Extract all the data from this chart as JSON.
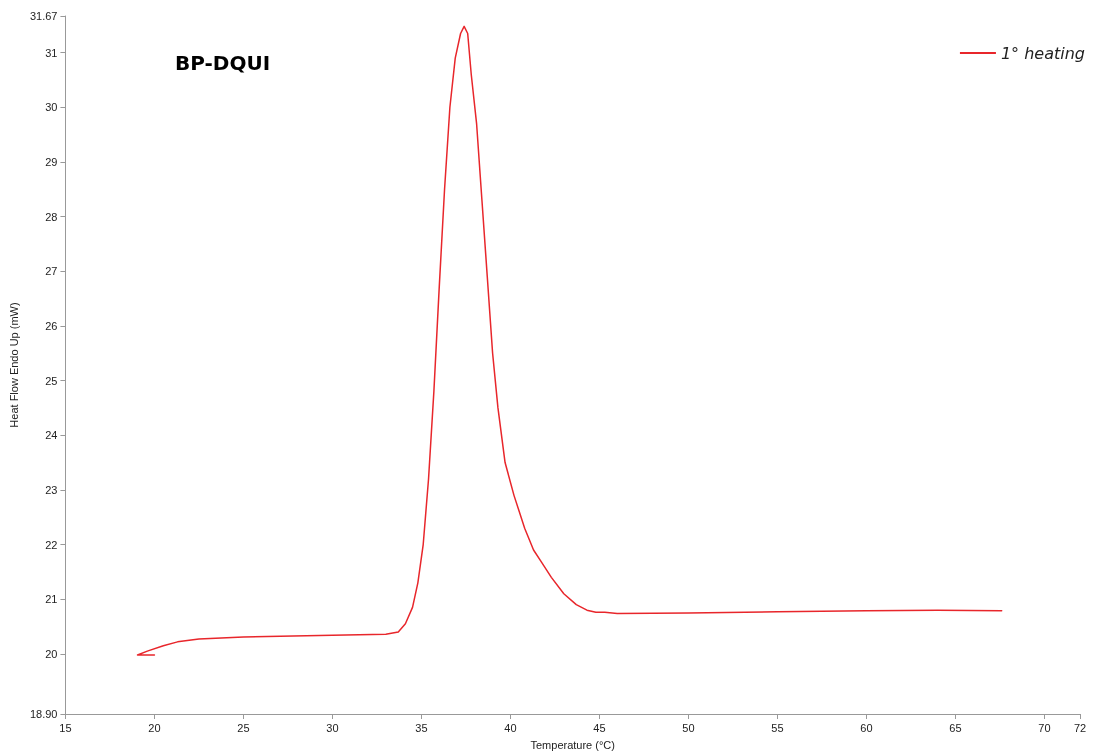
{
  "chart_data": {
    "type": "line",
    "title": "BP-DQUI",
    "xlabel": "Temperature (°C)",
    "ylabel": "Heat Flow Endo Up (mW)",
    "xlim": [
      15,
      72
    ],
    "xticks": [
      15,
      20,
      25,
      30,
      35,
      40,
      45,
      50,
      55,
      60,
      65,
      70,
      72
    ],
    "ylim": [
      18.9,
      31.67
    ],
    "yticks": [
      {
        "value": 18.9,
        "label": "18.90"
      },
      20,
      21,
      22,
      23,
      24,
      25,
      26,
      27,
      28,
      29,
      30,
      31,
      31.67
    ],
    "grid": false,
    "legend": "top right",
    "marker": "none",
    "line_style": "solid",
    "series": [
      {
        "name": "1° heating",
        "color": "#e8262b",
        "x": [
          20.0,
          19.05,
          19.6,
          20.5,
          21.3,
          22.5,
          25,
          30,
          33,
          33.7,
          34.1,
          34.5,
          34.8,
          35.1,
          35.4,
          35.7,
          36.0,
          36.3,
          36.6,
          36.9,
          37.2,
          37.4,
          37.6,
          37.8,
          38.1,
          38.4,
          38.7,
          39.0,
          39.3,
          39.7,
          40.2,
          40.8,
          41.3,
          41.7,
          42.3,
          43,
          43.7,
          44.3,
          44.8,
          45.3,
          46,
          50,
          55,
          60,
          64,
          67.6
        ],
        "values": [
          19.98,
          19.98,
          20.05,
          20.15,
          20.22,
          20.27,
          20.31,
          20.34,
          20.36,
          20.4,
          20.55,
          20.85,
          21.3,
          22.0,
          23.2,
          24.8,
          26.7,
          28.5,
          30.0,
          30.9,
          31.35,
          31.48,
          31.35,
          30.6,
          29.7,
          28.3,
          26.9,
          25.5,
          24.5,
          23.5,
          22.9,
          22.3,
          21.9,
          21.7,
          21.4,
          21.1,
          20.9,
          20.8,
          20.76,
          20.76,
          20.74,
          20.75,
          20.77,
          20.79,
          20.8,
          20.79
        ]
      }
    ]
  }
}
